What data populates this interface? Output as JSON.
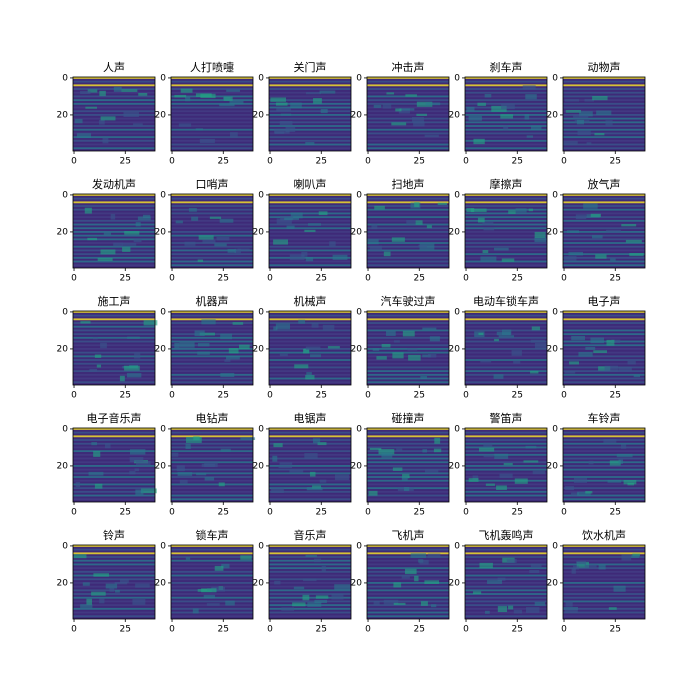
{
  "chart_data": [
    {
      "type": "image",
      "title": "人声",
      "xlim": [
        -0.5,
        39.5
      ],
      "xticks": [
        0,
        25
      ],
      "ylim": [
        39.5,
        -0.5
      ],
      "yticks": [
        0,
        20
      ]
    },
    {
      "type": "image",
      "title": "人打喷嚏",
      "xlim": [
        -0.5,
        39.5
      ],
      "xticks": [
        0,
        25
      ],
      "ylim": [
        39.5,
        -0.5
      ],
      "yticks": [
        0,
        20
      ]
    },
    {
      "type": "image",
      "title": "关门声",
      "xlim": [
        -0.5,
        39.5
      ],
      "xticks": [
        0,
        25
      ],
      "ylim": [
        39.5,
        -0.5
      ],
      "yticks": [
        0,
        20
      ]
    },
    {
      "type": "image",
      "title": "冲击声",
      "xlim": [
        -0.5,
        39.5
      ],
      "xticks": [
        0,
        25
      ],
      "ylim": [
        39.5,
        -0.5
      ],
      "yticks": [
        0,
        20
      ]
    },
    {
      "type": "image",
      "title": "刹车声",
      "xlim": [
        -0.5,
        39.5
      ],
      "xticks": [
        0,
        25
      ],
      "ylim": [
        39.5,
        -0.5
      ],
      "yticks": [
        0,
        20
      ]
    },
    {
      "type": "image",
      "title": "动物声",
      "xlim": [
        -0.5,
        39.5
      ],
      "xticks": [
        0,
        25
      ],
      "ylim": [
        39.5,
        -0.5
      ],
      "yticks": [
        0,
        20
      ]
    },
    {
      "type": "image",
      "title": "发动机声",
      "xlim": [
        -0.5,
        39.5
      ],
      "xticks": [
        0,
        25
      ],
      "ylim": [
        39.5,
        -0.5
      ],
      "yticks": [
        0,
        20
      ]
    },
    {
      "type": "image",
      "title": "口哨声",
      "xlim": [
        -0.5,
        39.5
      ],
      "xticks": [
        0,
        25
      ],
      "ylim": [
        39.5,
        -0.5
      ],
      "yticks": [
        0,
        20
      ]
    },
    {
      "type": "image",
      "title": "喇叭声",
      "xlim": [
        -0.5,
        39.5
      ],
      "xticks": [
        0,
        25
      ],
      "ylim": [
        39.5,
        -0.5
      ],
      "yticks": [
        0,
        20
      ]
    },
    {
      "type": "image",
      "title": "扫地声",
      "xlim": [
        -0.5,
        39.5
      ],
      "xticks": [
        0,
        25
      ],
      "ylim": [
        39.5,
        -0.5
      ],
      "yticks": [
        0,
        20
      ]
    },
    {
      "type": "image",
      "title": "摩擦声",
      "xlim": [
        -0.5,
        39.5
      ],
      "xticks": [
        0,
        25
      ],
      "ylim": [
        39.5,
        -0.5
      ],
      "yticks": [
        0,
        20
      ]
    },
    {
      "type": "image",
      "title": "放气声",
      "xlim": [
        -0.5,
        39.5
      ],
      "xticks": [
        0,
        25
      ],
      "ylim": [
        39.5,
        -0.5
      ],
      "yticks": [
        0,
        20
      ]
    },
    {
      "type": "image",
      "title": "施工声",
      "xlim": [
        -0.5,
        39.5
      ],
      "xticks": [
        0,
        25
      ],
      "ylim": [
        39.5,
        -0.5
      ],
      "yticks": [
        0,
        20
      ]
    },
    {
      "type": "image",
      "title": "机器声",
      "xlim": [
        -0.5,
        39.5
      ],
      "xticks": [
        0,
        25
      ],
      "ylim": [
        39.5,
        -0.5
      ],
      "yticks": [
        0,
        20
      ]
    },
    {
      "type": "image",
      "title": "机械声",
      "xlim": [
        -0.5,
        39.5
      ],
      "xticks": [
        0,
        25
      ],
      "ylim": [
        39.5,
        -0.5
      ],
      "yticks": [
        0,
        20
      ]
    },
    {
      "type": "image",
      "title": "汽车驶过声",
      "xlim": [
        -0.5,
        39.5
      ],
      "xticks": [
        0,
        25
      ],
      "ylim": [
        39.5,
        -0.5
      ],
      "yticks": [
        0,
        20
      ]
    },
    {
      "type": "image",
      "title": "电动车锁车声",
      "xlim": [
        -0.5,
        39.5
      ],
      "xticks": [
        0,
        25
      ],
      "ylim": [
        39.5,
        -0.5
      ],
      "yticks": [
        0,
        20
      ]
    },
    {
      "type": "image",
      "title": "电子声",
      "xlim": [
        -0.5,
        39.5
      ],
      "xticks": [
        0,
        25
      ],
      "ylim": [
        39.5,
        -0.5
      ],
      "yticks": [
        0,
        20
      ]
    },
    {
      "type": "image",
      "title": "电子音乐声",
      "xlim": [
        -0.5,
        39.5
      ],
      "xticks": [
        0,
        25
      ],
      "ylim": [
        39.5,
        -0.5
      ],
      "yticks": [
        0,
        20
      ]
    },
    {
      "type": "image",
      "title": "电钻声",
      "xlim": [
        -0.5,
        39.5
      ],
      "xticks": [
        0,
        25
      ],
      "ylim": [
        39.5,
        -0.5
      ],
      "yticks": [
        0,
        20
      ]
    },
    {
      "type": "image",
      "title": "电锯声",
      "xlim": [
        -0.5,
        39.5
      ],
      "xticks": [
        0,
        25
      ],
      "ylim": [
        39.5,
        -0.5
      ],
      "yticks": [
        0,
        20
      ]
    },
    {
      "type": "image",
      "title": "碰撞声",
      "xlim": [
        -0.5,
        39.5
      ],
      "xticks": [
        0,
        25
      ],
      "ylim": [
        39.5,
        -0.5
      ],
      "yticks": [
        0,
        20
      ]
    },
    {
      "type": "image",
      "title": "警笛声",
      "xlim": [
        -0.5,
        39.5
      ],
      "xticks": [
        0,
        25
      ],
      "ylim": [
        39.5,
        -0.5
      ],
      "yticks": [
        0,
        20
      ]
    },
    {
      "type": "image",
      "title": "车铃声",
      "xlim": [
        -0.5,
        39.5
      ],
      "xticks": [
        0,
        25
      ],
      "ylim": [
        39.5,
        -0.5
      ],
      "yticks": [
        0,
        20
      ]
    },
    {
      "type": "image",
      "title": "铃声",
      "xlim": [
        -0.5,
        39.5
      ],
      "xticks": [
        0,
        25
      ],
      "ylim": [
        39.5,
        -0.5
      ],
      "yticks": [
        0,
        20
      ]
    },
    {
      "type": "image",
      "title": "锁车声",
      "xlim": [
        -0.5,
        39.5
      ],
      "xticks": [
        0,
        25
      ],
      "ylim": [
        39.5,
        -0.5
      ],
      "yticks": [
        0,
        20
      ]
    },
    {
      "type": "image",
      "title": "音乐声",
      "xlim": [
        -0.5,
        39.5
      ],
      "xticks": [
        0,
        25
      ],
      "ylim": [
        39.5,
        -0.5
      ],
      "yticks": [
        0,
        20
      ]
    },
    {
      "type": "image",
      "title": "飞机声",
      "xlim": [
        -0.5,
        39.5
      ],
      "xticks": [
        0,
        25
      ],
      "ylim": [
        39.5,
        -0.5
      ],
      "yticks": [
        0,
        20
      ]
    },
    {
      "type": "image",
      "title": "飞机轰鸣声",
      "xlim": [
        -0.5,
        39.5
      ],
      "xticks": [
        0,
        25
      ],
      "ylim": [
        39.5,
        -0.5
      ],
      "yticks": [
        0,
        20
      ]
    },
    {
      "type": "image",
      "title": "饮水机声",
      "xlim": [
        -0.5,
        39.5
      ],
      "xticks": [
        0,
        25
      ],
      "ylim": [
        39.5,
        -0.5
      ],
      "yticks": [
        0,
        20
      ]
    }
  ]
}
